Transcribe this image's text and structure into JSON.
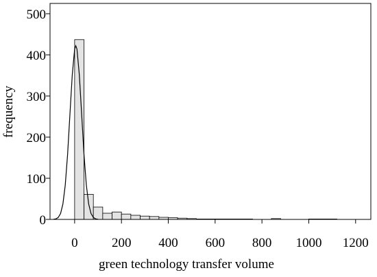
{
  "chart_data": {
    "type": "histogram",
    "x_label": "green technology transfer volume",
    "y_label": "frequency",
    "bins": [
      0,
      40,
      80,
      120,
      160,
      200,
      240,
      280,
      320,
      360,
      400,
      440,
      480,
      520,
      560,
      600,
      640,
      680,
      720,
      760,
      800,
      840,
      880,
      920,
      960,
      1000,
      1040,
      1080,
      1120
    ],
    "counts": [
      437,
      61,
      30,
      15,
      18,
      13,
      10,
      8,
      7,
      5,
      4,
      3,
      2,
      1,
      1,
      1,
      1,
      1,
      1,
      0,
      0,
      2,
      0,
      0,
      0,
      1,
      1,
      1
    ],
    "color": "#e3e3e3",
    "curve": {
      "x": [
        -90,
        -80,
        -70,
        -60,
        -50,
        -40,
        -30,
        -20,
        -10,
        0,
        5,
        10,
        20,
        30,
        40,
        50,
        60,
        70,
        80,
        90,
        100
      ],
      "y": [
        0.3,
        1.3,
        4.7,
        14.3,
        37.5,
        83.5,
        158,
        256,
        352,
        414,
        422,
        414,
        352,
        256,
        158,
        83.5,
        37.5,
        14.3,
        4.7,
        1.3,
        0.3
      ]
    },
    "xlim": [
      -105,
      1265
    ],
    "ylim": [
      0,
      525
    ],
    "xticks": [
      0,
      200,
      400,
      600,
      800,
      1000,
      1200
    ],
    "yticks": [
      0,
      100,
      200,
      300,
      400,
      500
    ]
  }
}
